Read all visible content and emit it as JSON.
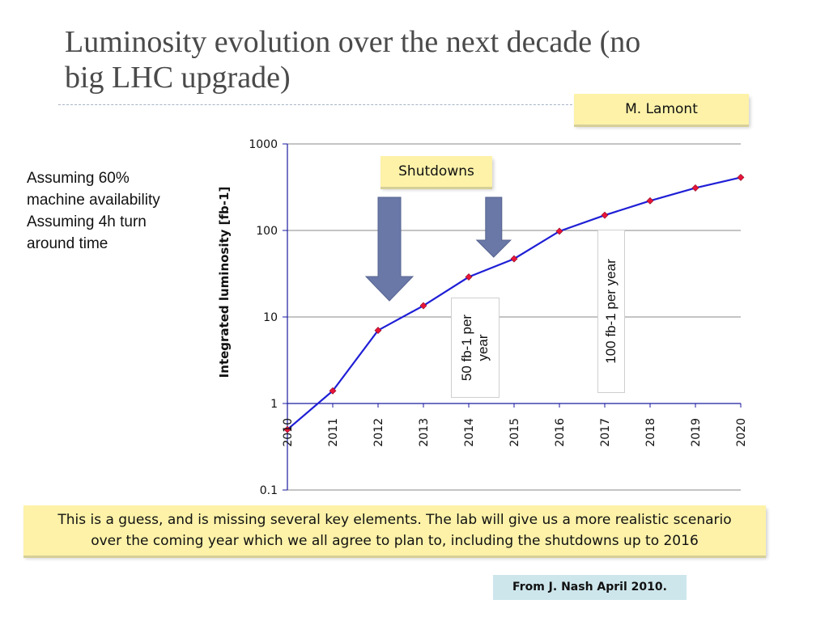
{
  "slide": {
    "title": "Luminosity evolution over the next decade (no big LHC upgrade)",
    "author": "M. Lamont",
    "assumptions": [
      "Assuming 60%",
      "machine availability",
      "Assuming 4h turn",
      "around time"
    ],
    "callout": "Shutdowns",
    "footer_lines": [
      "This is a guess, and is missing several key elements.  The lab will give us a more realistic scenario",
      "over the coming year which we all agree to plan to, including the shutdowns up to 2016"
    ],
    "source": "From J. Nash April 2010.",
    "rate_labels": [
      "50 fb-1 per year",
      "100 fb-1 per year"
    ]
  },
  "chart_data": {
    "type": "line",
    "title": "",
    "xlabel": "",
    "ylabel": "Integrated luminosity [fb-1]",
    "y_scale": "log",
    "ylim": [
      0.1,
      1000
    ],
    "y_ticks": [
      "1000",
      "100",
      "10",
      "1",
      "0.1"
    ],
    "grid": "horizontal",
    "categories": [
      "2010",
      "2011",
      "2012",
      "2013",
      "2014",
      "2015",
      "2016",
      "2017",
      "2018",
      "2019",
      "2020"
    ],
    "series": [
      {
        "name": "",
        "values": [
          0.5,
          1.4,
          7,
          13.5,
          29,
          47,
          98,
          150,
          220,
          310,
          410
        ],
        "color": "#1f1fd6",
        "marker_color": "#e8143a"
      }
    ],
    "annotations": [
      {
        "type": "arrow",
        "at_year": 2012.25,
        "size": "large",
        "color": "#6a78a8"
      },
      {
        "type": "arrow",
        "at_year": 2014.55,
        "size": "small",
        "color": "#6a78a8"
      }
    ]
  }
}
